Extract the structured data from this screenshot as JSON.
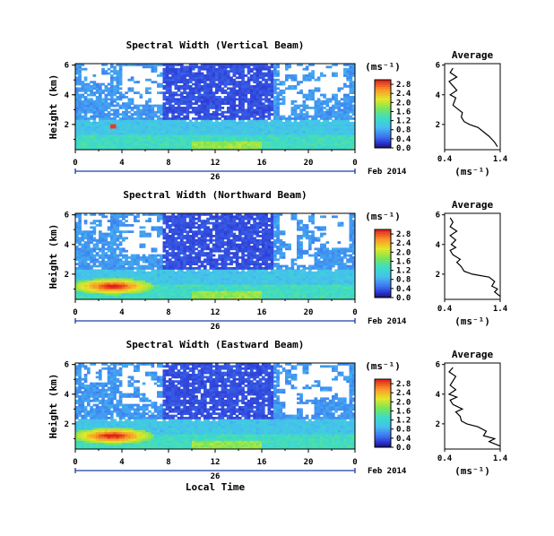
{
  "chart_data": [
    {
      "type": "heatmap",
      "title": "Spectral Width (Vertical Beam)",
      "ylabel": "Height (km)",
      "xlabel": "",
      "xticks": [
        "0",
        "4",
        "8",
        "12",
        "16",
        "20",
        "0"
      ],
      "yticks": [
        "2",
        "4",
        "6"
      ],
      "xlim": [
        0,
        24
      ],
      "ylim": [
        0.3,
        6.1
      ],
      "date_day": "26",
      "date_month": "Feb 2014",
      "colorbar": {
        "unit": "(ms⁻¹)",
        "ticks": [
          "0.0",
          "0.4",
          "0.8",
          "1.2",
          "1.6",
          "2.0",
          "2.4",
          "2.8"
        ],
        "max": 3.0
      },
      "avg_profile": {
        "title": "Average",
        "xlabel": "(ms⁻¹)",
        "xticks": [
          "0.4",
          "1.4"
        ],
        "yticks": [
          "2",
          "4",
          "6"
        ],
        "xlim": [
          0.4,
          1.4
        ],
        "ylim": [
          0.3,
          6.1
        ],
        "heights": [
          0.5,
          0.8,
          1.0,
          1.2,
          1.5,
          1.8,
          2.0,
          2.2,
          2.5,
          2.8,
          3.0,
          3.3,
          3.6,
          3.8,
          4.0,
          4.3,
          4.6,
          4.9,
          5.2,
          5.5,
          5.8
        ],
        "values": [
          1.35,
          1.3,
          1.25,
          1.2,
          1.1,
          1.0,
          0.85,
          0.75,
          0.7,
          0.72,
          0.65,
          0.55,
          0.58,
          0.6,
          0.5,
          0.62,
          0.55,
          0.48,
          0.62,
          0.5,
          0.55
        ]
      }
    },
    {
      "type": "heatmap",
      "title": "Spectral Width (Northward Beam)",
      "ylabel": "Height (km)",
      "xlabel": "",
      "xticks": [
        "0",
        "4",
        "8",
        "12",
        "16",
        "20",
        "0"
      ],
      "yticks": [
        "2",
        "4",
        "6"
      ],
      "xlim": [
        0,
        24
      ],
      "ylim": [
        0.3,
        6.1
      ],
      "date_day": "26",
      "date_month": "Feb 2014",
      "colorbar": {
        "unit": "(ms⁻¹)",
        "ticks": [
          "0.0",
          "0.4",
          "0.8",
          "1.2",
          "1.6",
          "2.0",
          "2.4",
          "2.8"
        ],
        "max": 3.0
      },
      "avg_profile": {
        "title": "Average",
        "xlabel": "(ms⁻¹)",
        "xticks": [
          "0.4",
          "1.4"
        ],
        "yticks": [
          "2",
          "4",
          "6"
        ],
        "xlim": [
          0.4,
          1.4
        ],
        "ylim": [
          0.3,
          6.1
        ],
        "heights": [
          0.5,
          0.8,
          1.0,
          1.2,
          1.5,
          1.8,
          2.0,
          2.2,
          2.5,
          2.8,
          3.0,
          3.3,
          3.6,
          3.8,
          4.0,
          4.3,
          4.6,
          4.9,
          5.2,
          5.5,
          5.8
        ],
        "values": [
          1.4,
          1.3,
          1.35,
          1.25,
          1.3,
          1.2,
          0.9,
          0.75,
          0.7,
          0.62,
          0.68,
          0.55,
          0.5,
          0.6,
          0.52,
          0.6,
          0.5,
          0.62,
          0.5,
          0.55,
          0.5
        ]
      }
    },
    {
      "type": "heatmap",
      "title": "Spectral Width (Eastward Beam)",
      "ylabel": "Height (km)",
      "xlabel": "Local Time",
      "xticks": [
        "0",
        "4",
        "8",
        "12",
        "16",
        "20",
        "0"
      ],
      "yticks": [
        "2",
        "4",
        "6"
      ],
      "xlim": [
        0,
        24
      ],
      "ylim": [
        0.3,
        6.1
      ],
      "date_day": "26",
      "date_month": "Feb 2014",
      "colorbar": {
        "unit": "(ms⁻¹)",
        "ticks": [
          "0.0",
          "0.4",
          "0.8",
          "1.2",
          "1.6",
          "2.0",
          "2.4",
          "2.8"
        ],
        "max": 3.0
      },
      "avg_profile": {
        "title": "Average",
        "xlabel": "(ms⁻¹)",
        "xticks": [
          "0.4",
          "1.4"
        ],
        "yticks": [
          "2",
          "4",
          "6"
        ],
        "xlim": [
          0.4,
          1.4
        ],
        "ylim": [
          0.3,
          6.1
        ],
        "heights": [
          0.5,
          0.8,
          1.0,
          1.2,
          1.5,
          1.8,
          2.0,
          2.2,
          2.5,
          2.8,
          3.0,
          3.3,
          3.6,
          3.8,
          4.0,
          4.3,
          4.6,
          4.9,
          5.2,
          5.5,
          5.8
        ],
        "values": [
          1.4,
          1.2,
          1.3,
          1.1,
          1.15,
          1.0,
          0.8,
          0.7,
          0.68,
          0.6,
          0.72,
          0.55,
          0.5,
          0.62,
          0.48,
          0.6,
          0.5,
          0.55,
          0.6,
          0.48,
          0.55
        ]
      }
    }
  ]
}
